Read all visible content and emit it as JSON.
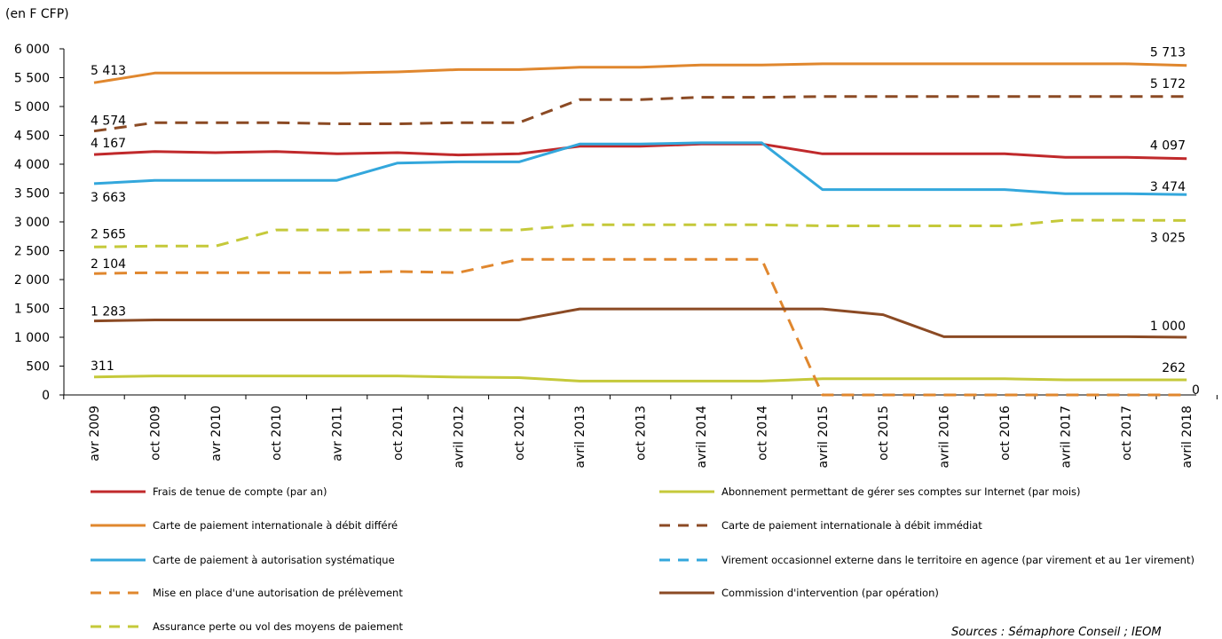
{
  "unit_label": "(en F CFP)",
  "source": "Sources : Sémaphore Conseil ; IEOM",
  "chart_data": {
    "type": "line",
    "ylim": [
      0,
      6000
    ],
    "yticks": [
      "0",
      "500",
      "1 000",
      "1 500",
      "2 000",
      "2 500",
      "3 000",
      "3 500",
      "4 000",
      "4 500",
      "5 000",
      "5 500",
      "6 000"
    ],
    "categories": [
      "avr 2009",
      "oct 2009",
      "avr 2010",
      "oct 2010",
      "avr 2011",
      "oct 2011",
      "avril 2012",
      "oct 2012",
      "avril 2013",
      "oct 2013",
      "avril 2014",
      "oct 2014",
      "avril 2015",
      "oct 2015",
      "avril 2016",
      "oct 2016",
      "avril 2017",
      "oct 2017",
      "avril 2018"
    ],
    "legend_placement": "bottom",
    "series": [
      {
        "name": "Frais de tenue de compte (par an)",
        "color": "#c0292b",
        "dash": "solid",
        "values": [
          4167,
          4220,
          4200,
          4220,
          4180,
          4200,
          4160,
          4180,
          4310,
          4310,
          4350,
          4350,
          4180,
          4180,
          4180,
          4180,
          4120,
          4120,
          4097
        ],
        "start_label": "4 167",
        "end_label": "4 097"
      },
      {
        "name": "Abonnement permettant de gérer ses comptes sur Internet (par mois)",
        "color": "#c5c93a",
        "dash": "solid",
        "values": [
          311,
          330,
          330,
          330,
          330,
          330,
          310,
          300,
          240,
          240,
          240,
          240,
          280,
          280,
          280,
          280,
          262,
          262,
          262
        ],
        "start_label": "311",
        "end_label": "262"
      },
      {
        "name": "Carte de paiement internationale à débit différé",
        "color": "#e0872e",
        "dash": "solid",
        "values": [
          5413,
          5580,
          5580,
          5580,
          5580,
          5600,
          5640,
          5640,
          5680,
          5680,
          5720,
          5720,
          5740,
          5740,
          5740,
          5740,
          5740,
          5740,
          5713
        ],
        "start_label": "5 413",
        "end_label": "5 713"
      },
      {
        "name": "Carte de paiement internationale à débit immédiat",
        "color": "#8b4a24",
        "dash": "dashed",
        "values": [
          4574,
          4720,
          4720,
          4720,
          4700,
          4700,
          4720,
          4720,
          5120,
          5120,
          5160,
          5160,
          5172,
          5172,
          5172,
          5172,
          5172,
          5172,
          5172
        ],
        "start_label": "4 574",
        "end_label": "5 172"
      },
      {
        "name": "Carte de paiement à autorisation systématique",
        "color": "#33a7dc",
        "dash": "solid",
        "values": [
          3663,
          3720,
          3720,
          3720,
          3720,
          4020,
          4040,
          4040,
          4350,
          4350,
          4370,
          4370,
          3560,
          3560,
          3560,
          3560,
          3490,
          3490,
          3474
        ],
        "start_label": "3 663",
        "end_label": "3 474"
      },
      {
        "name": "Virement occasionnel externe dans le territoire en agence (par virement et au 1er virement)",
        "color": "#33a7dc",
        "dash": "dashed",
        "values": [
          null,
          null,
          null,
          null,
          null,
          null,
          null,
          null,
          null,
          null,
          null,
          null,
          null,
          null,
          null,
          null,
          null,
          null,
          null
        ],
        "start_label": "",
        "end_label": ""
      },
      {
        "name": "Mise en place d'une autorisation de prélèvement",
        "color": "#e0872e",
        "dash": "dashed",
        "values": [
          2104,
          2120,
          2120,
          2120,
          2120,
          2140,
          2120,
          2350,
          2350,
          2350,
          2350,
          2350,
          0,
          0,
          0,
          0,
          0,
          0,
          0
        ],
        "start_label": "2 104",
        "end_label": "0"
      },
      {
        "name": "Commission d'intervention (par opération)",
        "color": "#8b4a24",
        "dash": "solid",
        "values": [
          1283,
          1300,
          1300,
          1300,
          1300,
          1300,
          1300,
          1300,
          1490,
          1490,
          1490,
          1490,
          1490,
          1390,
          1010,
          1010,
          1010,
          1010,
          1000
        ],
        "start_label": "1 283",
        "end_label": "1 000"
      },
      {
        "name": "Assurance perte ou vol des moyens de paiement",
        "color": "#c5c93a",
        "dash": "dashed",
        "values": [
          2565,
          2580,
          2580,
          2860,
          2860,
          2860,
          2860,
          2860,
          2950,
          2950,
          2950,
          2950,
          2930,
          2930,
          2930,
          2930,
          3030,
          3030,
          3025
        ],
        "start_label": "2 565",
        "end_label": "3 025"
      }
    ]
  }
}
